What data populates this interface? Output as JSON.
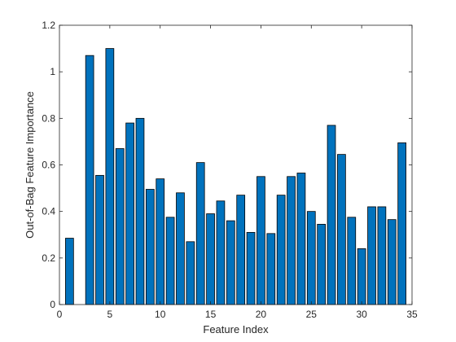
{
  "chart_data": {
    "type": "bar",
    "title": "",
    "xlabel": "Feature Index",
    "ylabel": "Out-of-Bag Feature Importance",
    "xlim": [
      0,
      35
    ],
    "ylim": [
      0,
      1.2
    ],
    "x_ticks": [
      0,
      5,
      10,
      15,
      20,
      25,
      30,
      35
    ],
    "y_ticks": [
      0,
      0.2,
      0.4,
      0.6,
      0.8,
      1,
      1.2
    ],
    "x_tick_labels": [
      "0",
      "5",
      "10",
      "15",
      "20",
      "25",
      "30",
      "35"
    ],
    "y_tick_labels": [
      "0",
      "0.2",
      "0.4",
      "0.6",
      "0.8",
      "1",
      "1.2"
    ],
    "grid": false,
    "colors": {
      "bar_fill": "#0072BD",
      "bar_edge": "#000000",
      "axis": "#262626"
    },
    "x": [
      1,
      2,
      3,
      4,
      5,
      6,
      7,
      8,
      9,
      10,
      11,
      12,
      13,
      14,
      15,
      16,
      17,
      18,
      19,
      20,
      21,
      22,
      23,
      24,
      25,
      26,
      27,
      28,
      29,
      30,
      31,
      32,
      33,
      34
    ],
    "values": [
      0.285,
      0.0,
      1.07,
      0.555,
      1.1,
      0.67,
      0.78,
      0.8,
      0.495,
      0.54,
      0.375,
      0.48,
      0.27,
      0.61,
      0.39,
      0.445,
      0.36,
      0.47,
      0.31,
      0.55,
      0.305,
      0.47,
      0.55,
      0.565,
      0.4,
      0.345,
      0.77,
      0.645,
      0.375,
      0.24,
      0.42,
      0.42,
      0.365,
      0.695
    ]
  }
}
